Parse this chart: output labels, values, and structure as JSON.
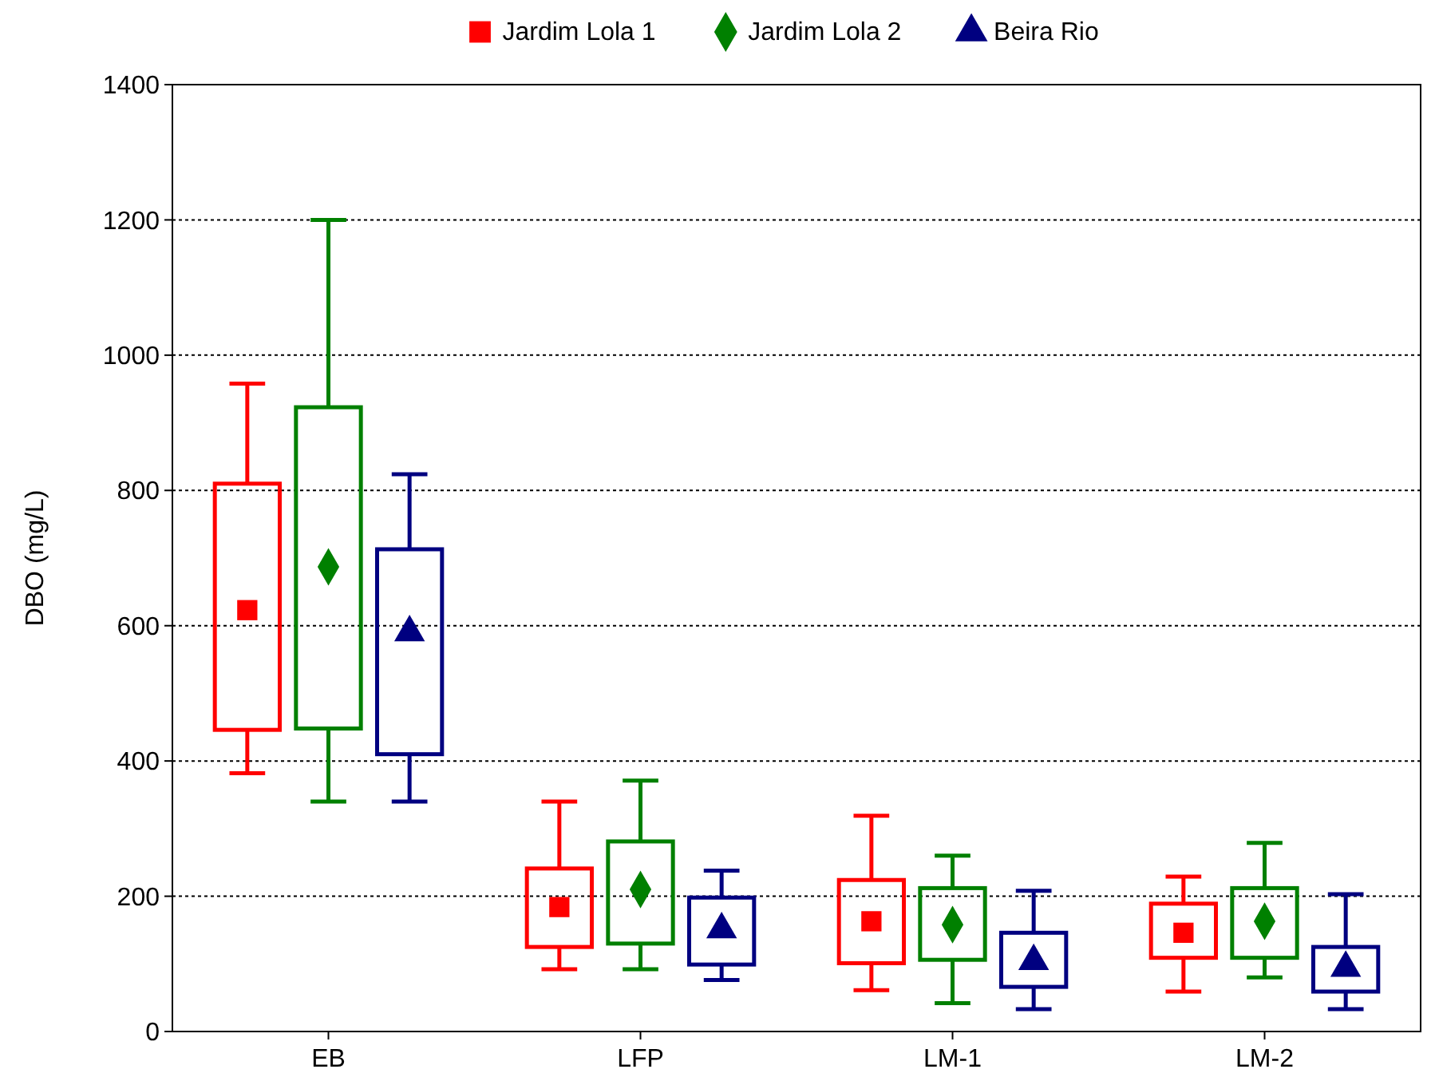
{
  "chart_data": {
    "type": "box",
    "ylabel": "DBO (mg/L)",
    "categories": [
      "EB",
      "LFP",
      "LM-1",
      "LM-2"
    ],
    "ylim": [
      0,
      1400
    ],
    "yticks": [
      0,
      200,
      400,
      600,
      800,
      1000,
      1200,
      1400
    ],
    "grid": "y",
    "line_style": "dotted",
    "legend": "top",
    "series": [
      {
        "name": "Jardim Lola 1",
        "color": "#ff0000",
        "marker": "square",
        "boxes": [
          {
            "low": 382,
            "q1": 446,
            "median": 623,
            "q3": 810,
            "high": 958
          },
          {
            "low": 92,
            "q1": 125,
            "median": 184,
            "q3": 241,
            "high": 340
          },
          {
            "low": 61,
            "q1": 101,
            "median": 163,
            "q3": 224,
            "high": 319
          },
          {
            "low": 59,
            "q1": 109,
            "median": 146,
            "q3": 189,
            "high": 229
          }
        ]
      },
      {
        "name": "Jardim Lola 2",
        "color": "#008000",
        "marker": "diamond",
        "boxes": [
          {
            "low": 340,
            "q1": 448,
            "median": 687,
            "q3": 923,
            "high": 1200
          },
          {
            "low": 92,
            "q1": 130,
            "median": 210,
            "q3": 281,
            "high": 371
          },
          {
            "low": 42,
            "q1": 106,
            "median": 158,
            "q3": 212,
            "high": 260
          },
          {
            "low": 80,
            "q1": 109,
            "median": 163,
            "q3": 212,
            "high": 279
          }
        ]
      },
      {
        "name": "Beira Rio",
        "color": "#000080",
        "marker": "triangle",
        "boxes": [
          {
            "low": 340,
            "q1": 410,
            "median": 590,
            "q3": 713,
            "high": 824
          },
          {
            "low": 76,
            "q1": 99,
            "median": 151,
            "q3": 198,
            "high": 238
          },
          {
            "low": 33,
            "q1": 66,
            "median": 104,
            "q3": 146,
            "high": 208
          },
          {
            "low": 33,
            "q1": 59,
            "median": 94,
            "q3": 125,
            "high": 203
          }
        ]
      }
    ]
  }
}
